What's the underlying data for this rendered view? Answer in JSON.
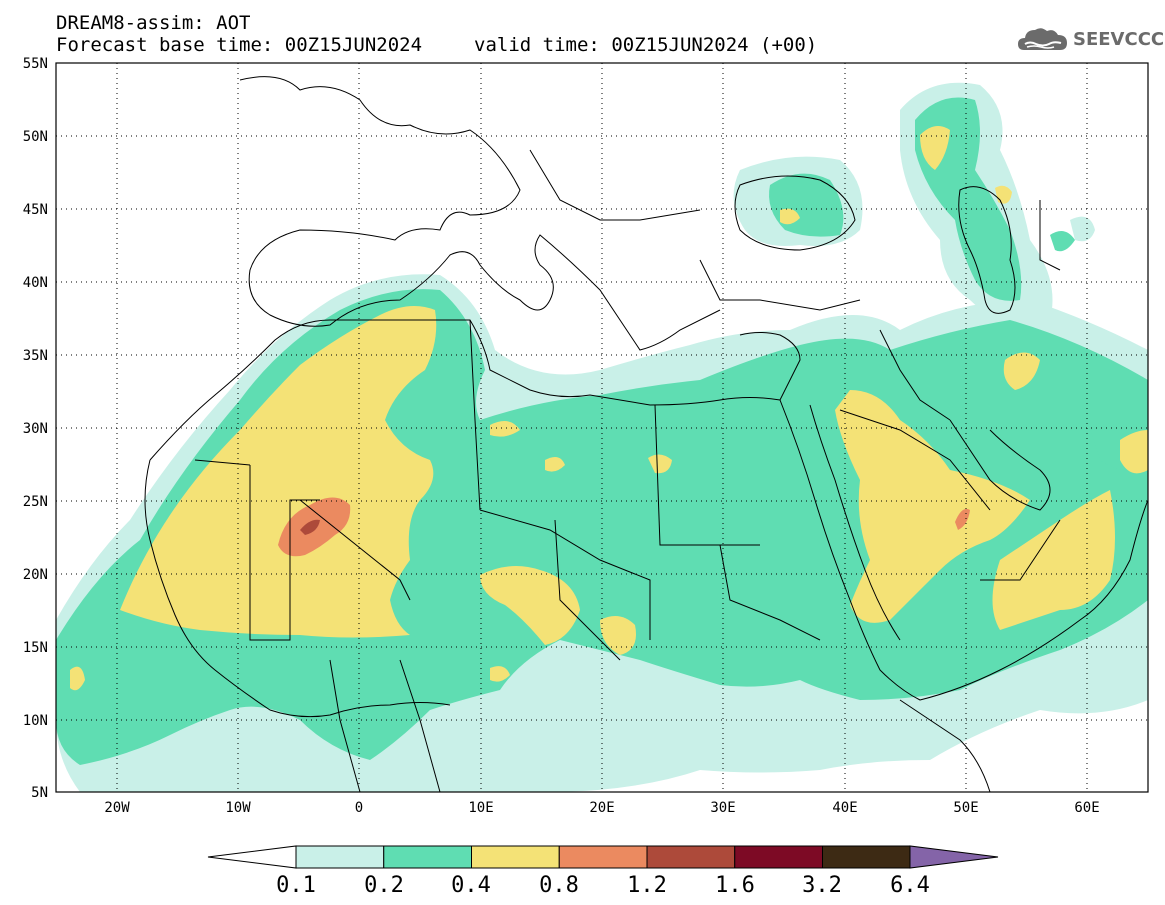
{
  "header": {
    "title_line1": "DREAM8-assim: AOT",
    "base_time": "Forecast base time: 00Z15JUN2024",
    "valid_time": "valid time: 00Z15JUN2024 (+00)"
  },
  "logo": {
    "text": "SEEVCCC",
    "icon": "cloud-icon"
  },
  "map": {
    "lat_labels": [
      "55N",
      "50N",
      "45N",
      "40N",
      "35N",
      "30N",
      "25N",
      "20N",
      "15N",
      "10N",
      "5N"
    ],
    "lon_labels": [
      "20W",
      "10W",
      "0",
      "10E",
      "20E",
      "30E",
      "40E",
      "50E",
      "60E"
    ],
    "extent": {
      "lon": [
        -25,
        65
      ],
      "lat": [
        5,
        55
      ]
    },
    "grid": true
  },
  "colorbar": {
    "labels": [
      "0.1",
      "0.2",
      "0.4",
      "0.8",
      "1.2",
      "1.6",
      "3.2",
      "6.4"
    ],
    "colors": [
      "#c9f0e8",
      "#5fddb2",
      "#f4e276",
      "#eb8a60",
      "#ad4a3a",
      "#7d0a25",
      "#3d2a14",
      "#8464a8"
    ],
    "under_color": "#ffffff",
    "over_color": "#8464a8"
  },
  "colors": {
    "c1": "#c9f0e8",
    "c2": "#5fddb2",
    "c3": "#f4e276",
    "c4": "#eb8a60",
    "c5": "#ad4a3a"
  }
}
